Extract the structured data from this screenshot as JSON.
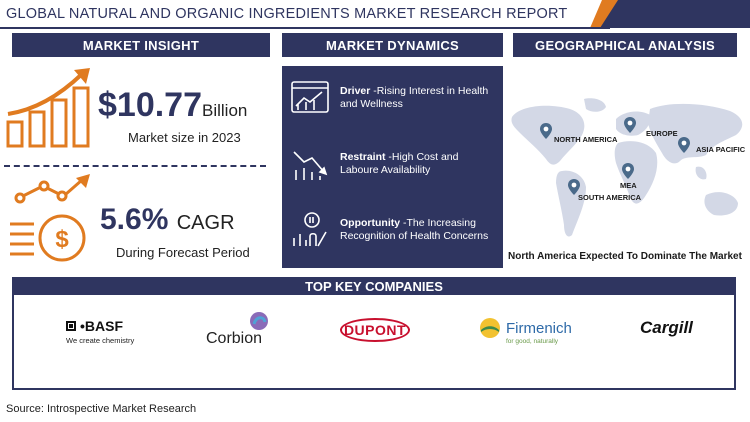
{
  "header": {
    "title": "GLOBAL NATURAL AND ORGANIC INGREDIENTS MARKET RESEARCH  REPORT"
  },
  "insight": {
    "heading": "MARKET INSIGHT",
    "market_value": "$10.77",
    "market_unit": "Billion",
    "market_caption": "Market size in 2023",
    "cagr_value": "5.6%",
    "cagr_unit": "CAGR",
    "cagr_caption": "During Forecast Period"
  },
  "dynamics": {
    "heading": "MARKET DYNAMICS",
    "items": [
      {
        "label": "Driver",
        "text": " -Rising Interest in Health and Wellness",
        "icon": "dashboard-chart-icon"
      },
      {
        "label": "Restraint",
        "text": " -High Cost and Laboure Availability",
        "icon": "declining-chart-icon"
      },
      {
        "label": "Opportunity",
        "text": " -The Increasing Recognition of Health Concerns",
        "icon": "growth-hand-icon"
      }
    ]
  },
  "geo": {
    "heading": "GEOGRAPHICAL ANALYSIS",
    "regions": [
      "NORTH AMERICA",
      "EUROPE",
      "ASIA PACIFIC",
      "MEA",
      "SOUTH AMERICA"
    ],
    "caption": "North America Expected To Dominate The Market"
  },
  "companies": {
    "heading": "TOP KEY COMPANIES",
    "basf": {
      "name": "BASF",
      "tagline": "We create chemistry"
    },
    "corbion": "Corbion",
    "dupont": "DUPONT",
    "firmenich": {
      "name": "Firmenich",
      "tagline": "for good, naturally"
    },
    "cargill": "Cargill"
  },
  "colors": {
    "navy": "#2f3560",
    "orange": "#e07b20"
  },
  "source": "Source: Introspective Market Research"
}
